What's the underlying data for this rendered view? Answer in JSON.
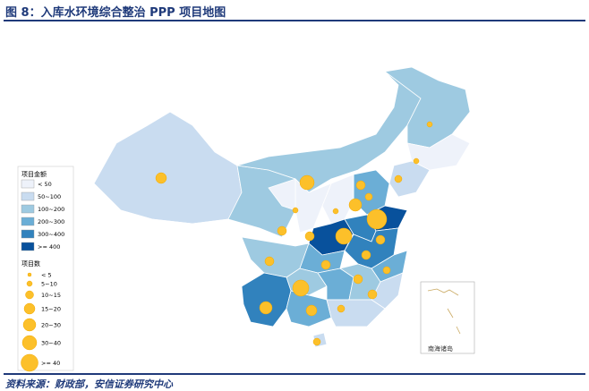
{
  "header": {
    "title": "图 8：入库水环境综合整治 PPP 项目地图"
  },
  "legend": {
    "amount_title": "项目金额",
    "amount_items": [
      "< 50",
      "50~100",
      "100~200",
      "200~300",
      "300~400",
      ">= 400"
    ],
    "count_title": "项目数",
    "count_items": [
      "< 5",
      "5~10",
      "10~15",
      "15~20",
      "20~30",
      "30~40",
      ">= 40"
    ]
  },
  "inset_label": "南海诸岛",
  "source": "资料来源：财政部，安信证券研究中心"
}
